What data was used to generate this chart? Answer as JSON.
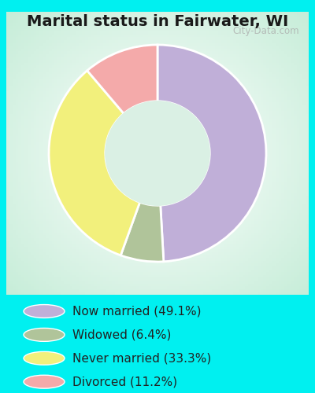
{
  "title": "Marital status in Fairwater, WI",
  "slices": [
    49.1,
    6.4,
    33.3,
    11.2
  ],
  "labels": [
    "Now married (49.1%)",
    "Widowed (6.4%)",
    "Never married (33.3%)",
    "Divorced (11.2%)"
  ],
  "colors": [
    "#c0afd8",
    "#b0c49a",
    "#f2f07c",
    "#f4aaaa"
  ],
  "outer_bg_color": "#00f0f0",
  "title_fontsize": 14,
  "legend_fontsize": 11,
  "watermark": "City-Data.com",
  "donut_width": 0.52,
  "start_angle": 90
}
